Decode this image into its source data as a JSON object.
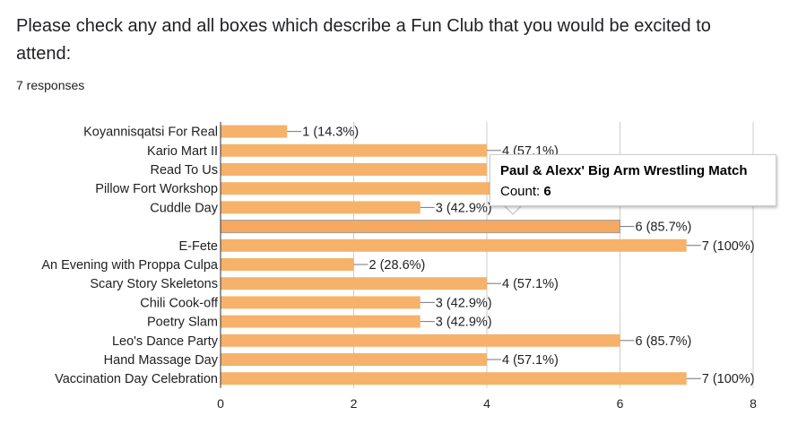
{
  "question": {
    "title": "Please check any and all boxes which describe a Fun Club that you would be excited to attend:",
    "responses": "7 responses"
  },
  "colors": {
    "bar": "#f6b26b",
    "bar_highlight": "#f5a962",
    "gridline": "#cccccc",
    "axis": "#333333",
    "text": "#202124"
  },
  "tooltip": {
    "title": "Paul & Alexx' Big Arm Wrestling Match",
    "count_label": "Count:",
    "count_value": "6"
  },
  "chart_data": {
    "type": "bar",
    "orientation": "horizontal",
    "categories": [
      "Koyannisqatsi For Real",
      "Kario Mart II",
      "Read To Us",
      "Pillow Fort Workshop",
      "Cuddle Day",
      "Paul & Alexx' Big Arm Wrestling Match",
      "E-Fete",
      "An Evening with Proppa Culpa",
      "Scary Story Skeletons",
      "Chili Cook-off",
      "Poetry Slam",
      "Leo's Dance Party",
      "Hand Massage Day",
      "Vaccination Day Celebration"
    ],
    "category_labels_shown": [
      "Koyannisqatsi For Real",
      "Kario Mart II",
      "Read To Us",
      "Pillow Fort Workshop",
      "Cuddle Day",
      "",
      "E-Fete",
      "An Evening with Proppa Culpa",
      "Scary Story Skeletons",
      "Chili Cook-off",
      "Poetry Slam",
      "Leo's Dance Party",
      "Hand Massage Day",
      "Vaccination Day Celebration"
    ],
    "values": [
      1,
      4,
      4,
      5,
      3,
      6,
      7,
      2,
      4,
      3,
      3,
      6,
      4,
      7
    ],
    "data_labels": [
      "1 (14.3%)",
      "4 (57.1%)",
      "",
      "",
      "3 (42.9%)",
      "6 (85.7%)",
      "7 (100%)",
      "2 (28.6%)",
      "4 (57.1%)",
      "3 (42.9%)",
      "3 (42.9%)",
      "6 (85.7%)",
      "4 (57.1%)",
      "7 (100%)"
    ],
    "highlighted_index": 5,
    "xlim": [
      0,
      8
    ],
    "xticks": [
      "0",
      "2",
      "4",
      "6",
      "8"
    ],
    "grid": true
  }
}
